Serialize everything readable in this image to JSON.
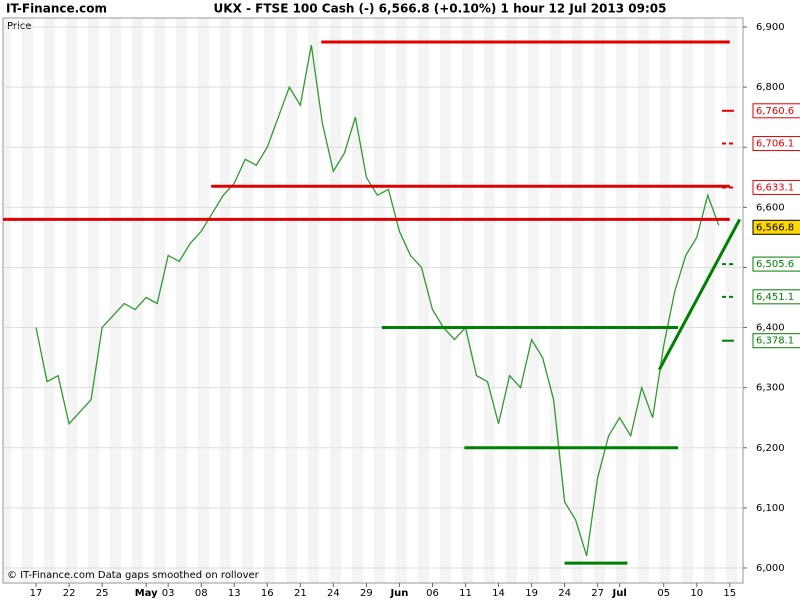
{
  "site": "IT-Finance.com",
  "chart_data": {
    "type": "line",
    "title": "UKX - FTSE 100 Cash (-)    6,566.8 (+0.10%)    1 hour   12 Jul 2013 09:05",
    "y_label": "Price",
    "footer": "© IT-Finance.com  Data gaps smoothed on rollover",
    "x": [
      0,
      1,
      2,
      3,
      4,
      5,
      6,
      7,
      8,
      9,
      10,
      11,
      12,
      13,
      14,
      15,
      16,
      17,
      18,
      19,
      20,
      21,
      22,
      23,
      24,
      25,
      26,
      27,
      28,
      29,
      30,
      31,
      32,
      33,
      34,
      35,
      36,
      37,
      38,
      39,
      40,
      41,
      42,
      43,
      44,
      45,
      46,
      47,
      48,
      49,
      50,
      51,
      52,
      53,
      54,
      55,
      56,
      57,
      58,
      59,
      60,
      61,
      62
    ],
    "series": [
      {
        "name": "UKX",
        "color": "#2f9a2f",
        "values": [
          6400,
          6310,
          6320,
          6240,
          6260,
          6280,
          6400,
          6420,
          6440,
          6430,
          6450,
          6440,
          6520,
          6510,
          6540,
          6560,
          6590,
          6620,
          6640,
          6680,
          6670,
          6700,
          6750,
          6800,
          6770,
          6870,
          6740,
          6660,
          6690,
          6750,
          6650,
          6620,
          6630,
          6560,
          6520,
          6500,
          6430,
          6400,
          6380,
          6400,
          6320,
          6310,
          6240,
          6320,
          6300,
          6380,
          6350,
          6280,
          6110,
          6080,
          6020,
          6150,
          6220,
          6250,
          6220,
          6300,
          6250,
          6370,
          6460,
          6520,
          6550,
          6620,
          6570
        ]
      }
    ],
    "xlim": [
      -3,
      64.2
    ],
    "xticks": [
      {
        "value": 0,
        "label": "17"
      },
      {
        "value": 3,
        "label": "22"
      },
      {
        "value": 6,
        "label": "25"
      },
      {
        "value": 10,
        "label": "May"
      },
      {
        "value": 12,
        "label": "03"
      },
      {
        "value": 15,
        "label": "08"
      },
      {
        "value": 18,
        "label": "13"
      },
      {
        "value": 21,
        "label": "16"
      },
      {
        "value": 24,
        "label": "21"
      },
      {
        "value": 27,
        "label": "24"
      },
      {
        "value": 30,
        "label": "29"
      },
      {
        "value": 33,
        "label": "Jun"
      },
      {
        "value": 36,
        "label": "06"
      },
      {
        "value": 39,
        "label": "11"
      },
      {
        "value": 42,
        "label": "14"
      },
      {
        "value": 45,
        "label": "19"
      },
      {
        "value": 48,
        "label": "24"
      },
      {
        "value": 51,
        "label": "27"
      },
      {
        "value": 53,
        "label": "Jul"
      },
      {
        "value": 57,
        "label": "05"
      },
      {
        "value": 60,
        "label": "10"
      },
      {
        "value": 63,
        "label": "15"
      }
    ],
    "ylim": [
      5975,
      6915
    ],
    "yticks": [
      {
        "value": 6000,
        "label": "6,000"
      },
      {
        "value": 6100,
        "label": "6,100"
      },
      {
        "value": 6200,
        "label": "6,200"
      },
      {
        "value": 6300,
        "label": "6,300"
      },
      {
        "value": 6400,
        "label": "6,400"
      },
      {
        "value": 6500,
        "label": "6,500"
      },
      {
        "value": 6600,
        "label": "6,600"
      },
      {
        "value": 6700,
        "label": "6,700"
      },
      {
        "value": 6800,
        "label": "6,800"
      },
      {
        "value": 6900,
        "label": "6,900"
      }
    ],
    "grid": true,
    "trend_lines": [
      {
        "color": "#e00000",
        "x": [
          25.9,
          63
        ],
        "y": [
          6875,
          6875
        ]
      },
      {
        "color": "#e00000",
        "x": [
          15.9,
          63
        ],
        "y": [
          6635,
          6635
        ]
      },
      {
        "color": "#e00000",
        "x": [
          -3,
          63
        ],
        "y": [
          6580,
          6580
        ]
      },
      {
        "color": "#008000",
        "x": [
          31.4,
          58.3
        ],
        "y": [
          6400,
          6400
        ]
      },
      {
        "color": "#008000",
        "x": [
          38.9,
          58.3
        ],
        "y": [
          6200,
          6200
        ]
      },
      {
        "color": "#008000",
        "x": [
          48,
          53.7
        ],
        "y": [
          6008,
          6008
        ]
      },
      {
        "color": "#008000",
        "x": [
          56.6,
          63.9
        ],
        "y": [
          6330,
          6580
        ]
      }
    ],
    "price_markers": [
      {
        "value": 6760.6,
        "label": "6,760.6",
        "color": "#e00000",
        "style": "solid"
      },
      {
        "value": 6706.1,
        "label": "6,706.1",
        "color": "#e00000",
        "style": "dashed"
      },
      {
        "value": 6633.1,
        "label": "6,633.1",
        "color": "#e00000",
        "style": "dashed"
      },
      {
        "value": 6566.8,
        "label": "6,566.8",
        "color": "#000000",
        "style": "current"
      },
      {
        "value": 6505.6,
        "label": "6,505.6",
        "color": "#008000",
        "style": "dashed"
      },
      {
        "value": 6451.1,
        "label": "6,451.1",
        "color": "#008000",
        "style": "dashed"
      },
      {
        "value": 6378.1,
        "label": "6,378.1",
        "color": "#008000",
        "style": "solid"
      }
    ]
  }
}
